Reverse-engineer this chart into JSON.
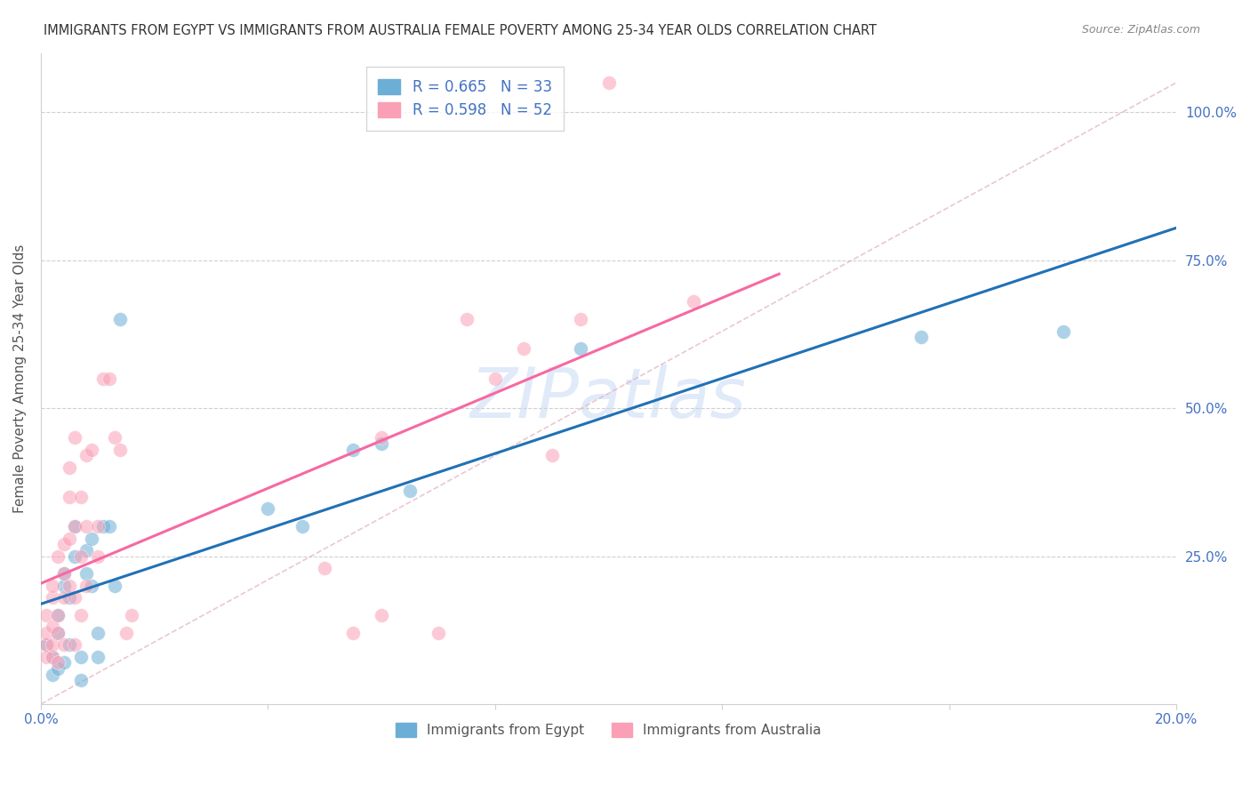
{
  "title": "IMMIGRANTS FROM EGYPT VS IMMIGRANTS FROM AUSTRALIA FEMALE POVERTY AMONG 25-34 YEAR OLDS CORRELATION CHART",
  "source": "Source: ZipAtlas.com",
  "ylabel": "Female Poverty Among 25-34 Year Olds",
  "xlim": [
    0.0,
    0.2
  ],
  "ylim": [
    0.0,
    1.1
  ],
  "xticks": [
    0.0,
    0.04,
    0.08,
    0.12,
    0.16,
    0.2
  ],
  "xticklabels": [
    "0.0%",
    "",
    "",
    "",
    "",
    "20.0%"
  ],
  "yticks": [
    0.0,
    0.25,
    0.5,
    0.75,
    1.0
  ],
  "yticklabels": [
    "",
    "25.0%",
    "50.0%",
    "75.0%",
    "100.0%"
  ],
  "legend_egypt": "R = 0.665   N = 33",
  "legend_australia": "R = 0.598   N = 52",
  "legend_bottom_egypt": "Immigrants from Egypt",
  "legend_bottom_australia": "Immigrants from Australia",
  "blue_color": "#6baed6",
  "pink_color": "#fa9fb5",
  "blue_line_color": "#2171b5",
  "pink_line_color": "#f768a1",
  "axis_label_color": "#4472c4",
  "watermark": "ZIPatlas",
  "egypt_x": [
    0.001,
    0.002,
    0.002,
    0.003,
    0.003,
    0.003,
    0.004,
    0.004,
    0.004,
    0.005,
    0.005,
    0.006,
    0.006,
    0.007,
    0.007,
    0.008,
    0.008,
    0.009,
    0.009,
    0.01,
    0.01,
    0.011,
    0.012,
    0.013,
    0.014,
    0.04,
    0.046,
    0.055,
    0.06,
    0.065,
    0.095,
    0.155,
    0.18
  ],
  "egypt_y": [
    0.1,
    0.05,
    0.08,
    0.06,
    0.12,
    0.15,
    0.07,
    0.2,
    0.22,
    0.1,
    0.18,
    0.25,
    0.3,
    0.04,
    0.08,
    0.22,
    0.26,
    0.2,
    0.28,
    0.12,
    0.08,
    0.3,
    0.3,
    0.2,
    0.65,
    0.33,
    0.3,
    0.43,
    0.44,
    0.36,
    0.6,
    0.62,
    0.63
  ],
  "australia_x": [
    0.001,
    0.001,
    0.001,
    0.001,
    0.002,
    0.002,
    0.002,
    0.002,
    0.002,
    0.003,
    0.003,
    0.003,
    0.003,
    0.004,
    0.004,
    0.004,
    0.004,
    0.005,
    0.005,
    0.005,
    0.005,
    0.006,
    0.006,
    0.006,
    0.006,
    0.007,
    0.007,
    0.007,
    0.008,
    0.008,
    0.008,
    0.009,
    0.01,
    0.01,
    0.011,
    0.012,
    0.013,
    0.014,
    0.015,
    0.016,
    0.05,
    0.055,
    0.06,
    0.06,
    0.07,
    0.075,
    0.08,
    0.085,
    0.09,
    0.095,
    0.1,
    0.115
  ],
  "australia_y": [
    0.1,
    0.08,
    0.12,
    0.15,
    0.08,
    0.1,
    0.13,
    0.18,
    0.2,
    0.07,
    0.12,
    0.15,
    0.25,
    0.1,
    0.18,
    0.22,
    0.27,
    0.2,
    0.28,
    0.35,
    0.4,
    0.1,
    0.18,
    0.3,
    0.45,
    0.15,
    0.25,
    0.35,
    0.2,
    0.3,
    0.42,
    0.43,
    0.25,
    0.3,
    0.55,
    0.55,
    0.45,
    0.43,
    0.12,
    0.15,
    0.23,
    0.12,
    0.15,
    0.45,
    0.12,
    0.65,
    0.55,
    0.6,
    0.42,
    0.65,
    1.05,
    0.68
  ]
}
